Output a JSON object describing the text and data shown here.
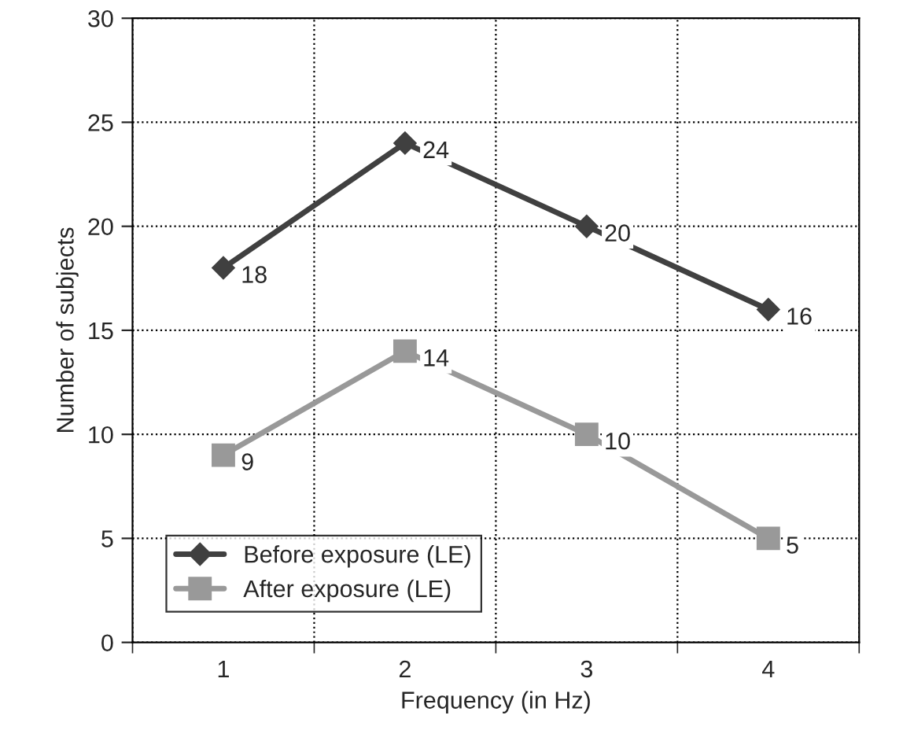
{
  "chart_data": {
    "type": "line",
    "xlabel": "Frequency (in Hz)",
    "ylabel": "Number of subjects",
    "categories": [
      "1",
      "2",
      "3",
      "4"
    ],
    "series": [
      {
        "name": "Before exposure (LE)",
        "color": "#404040",
        "marker": "diamond",
        "values": [
          18,
          24,
          20,
          16
        ]
      },
      {
        "name": "After exposure (LE)",
        "color": "#999999",
        "marker": "square",
        "values": [
          9,
          14,
          10,
          5
        ]
      }
    ],
    "ylim": [
      0,
      30
    ],
    "yticks": [
      0,
      5,
      10,
      15,
      20,
      25,
      30
    ],
    "grid": true,
    "legend": "bottom left",
    "data_labels": true,
    "line_style": "solid"
  }
}
